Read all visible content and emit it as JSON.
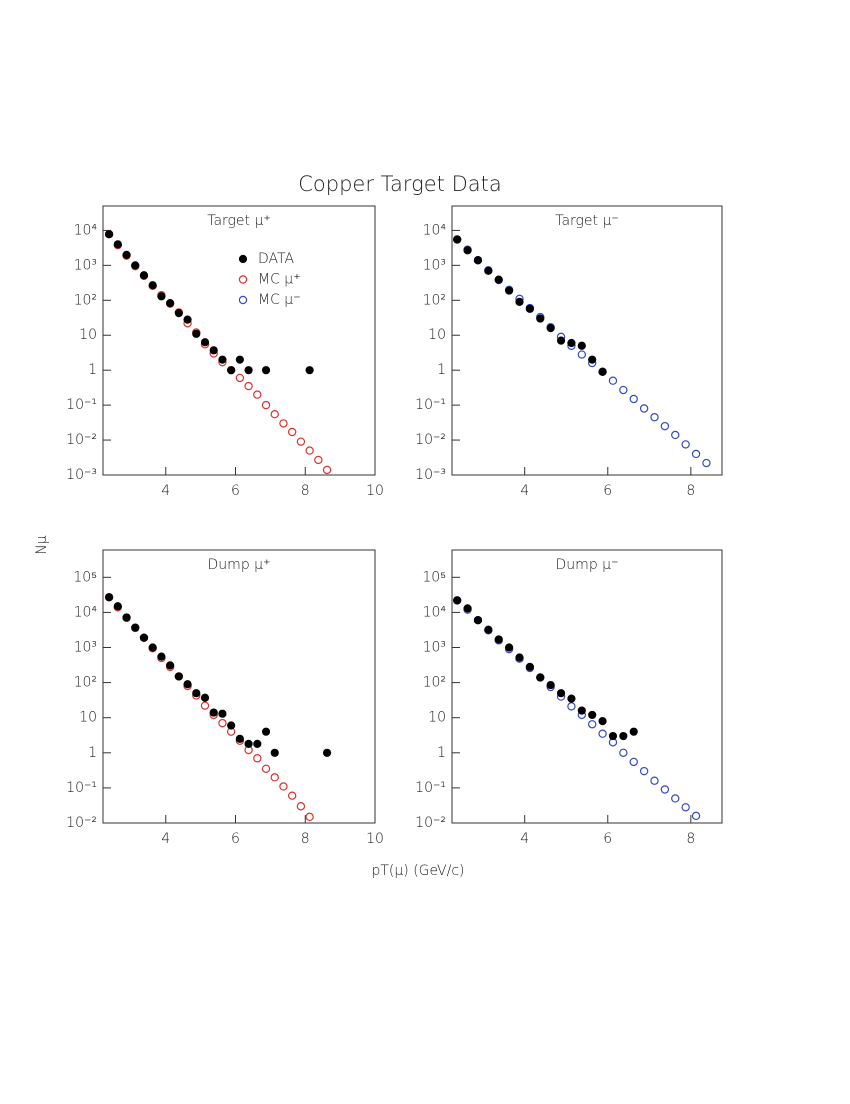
{
  "title": "Copper Target Data",
  "xlabel": "pT(μ) (GeV/c)",
  "ylabel": "Nμ",
  "legend": {
    "position": "upper right",
    "entries": [
      {
        "label": "DATA",
        "color": "#000000",
        "marker": "filled"
      },
      {
        "label": "MC μ⁺",
        "color": "#e0302a",
        "marker": "open"
      },
      {
        "label": "MC μ⁻",
        "color": "#3548c8",
        "marker": "open"
      }
    ]
  },
  "chart_data": [
    {
      "type": "scatter",
      "title": "Target μ⁺",
      "log_y": true,
      "legend": true,
      "xlim": [
        2.2,
        10
      ],
      "xticks": [
        4,
        6,
        8,
        10
      ],
      "ylim": [
        0.001,
        50000
      ],
      "yticks": [
        {
          "value": 10000,
          "label": "10⁴"
        },
        {
          "value": 1000,
          "label": "10³"
        },
        {
          "value": 100,
          "label": "10²"
        },
        10,
        1,
        {
          "value": 0.1,
          "label": "10⁻¹"
        },
        {
          "value": 0.01,
          "label": "10⁻²"
        },
        {
          "value": 0.001,
          "label": "10⁻³"
        }
      ],
      "series": [
        {
          "color": "#e0302a",
          "marker": "open",
          "x": [
            2.375,
            2.625,
            2.875,
            3.125,
            3.375,
            3.625,
            3.875,
            4.125,
            4.375,
            4.625,
            4.875,
            5.125,
            5.375,
            5.625,
            5.875,
            6.125,
            6.375,
            6.625,
            6.875,
            7.125,
            7.375,
            7.625,
            7.875,
            8.125,
            8.375,
            8.625
          ],
          "values": [
            7800,
            3800,
            1900,
            950,
            500,
            260,
            140,
            80,
            45,
            22,
            12,
            5.5,
            3,
            1.7,
            1.0,
            0.6,
            0.35,
            0.2,
            0.1,
            0.055,
            0.03,
            0.017,
            0.009,
            0.005,
            0.0027,
            0.0014
          ]
        },
        {
          "color": "#000000",
          "marker": "filled",
          "x": [
            2.375,
            2.625,
            2.875,
            3.125,
            3.375,
            3.625,
            3.875,
            4.125,
            4.375,
            4.625,
            4.875,
            5.125,
            5.375,
            5.625,
            5.875,
            6.125,
            6.375,
            6.875,
            8.125
          ],
          "values": [
            7800,
            4000,
            2000,
            1000,
            520,
            270,
            130,
            83,
            43,
            28,
            11,
            6.3,
            3.7,
            2,
            1,
            2,
            1,
            1,
            1
          ]
        }
      ]
    },
    {
      "type": "scatter",
      "title": "Target μ⁻",
      "log_y": true,
      "legend": false,
      "xlim": [
        2.25,
        8.75
      ],
      "xticks": [
        4,
        6,
        8
      ],
      "ylim": [
        0.001,
        50000
      ],
      "yticks": [
        {
          "value": 10000,
          "label": "10⁴"
        },
        {
          "value": 1000,
          "label": "10³"
        },
        {
          "value": 100,
          "label": "10²"
        },
        10,
        1,
        {
          "value": 0.1,
          "label": "10⁻¹"
        },
        {
          "value": 0.01,
          "label": "10⁻²"
        },
        {
          "value": 0.001,
          "label": "10⁻³"
        }
      ],
      "series": [
        {
          "color": "#3548c8",
          "marker": "open",
          "x": [
            2.375,
            2.625,
            2.875,
            3.125,
            3.375,
            3.625,
            3.875,
            4.125,
            4.375,
            4.625,
            4.875,
            5.125,
            5.375,
            5.625,
            5.875,
            6.125,
            6.375,
            6.625,
            6.875,
            7.125,
            7.375,
            7.625,
            7.875,
            8.125,
            8.375
          ],
          "values": [
            5500,
            2800,
            1400,
            720,
            380,
            200,
            110,
            60,
            33,
            17,
            9,
            5,
            2.8,
            1.6,
            0.9,
            0.5,
            0.27,
            0.15,
            0.08,
            0.045,
            0.025,
            0.014,
            0.0075,
            0.004,
            0.0022
          ]
        },
        {
          "color": "#000000",
          "marker": "filled",
          "x": [
            2.375,
            2.625,
            2.875,
            3.125,
            3.375,
            3.625,
            3.875,
            4.125,
            4.375,
            4.625,
            4.875,
            5.125,
            5.375,
            5.625,
            5.875
          ],
          "values": [
            5500,
            2700,
            1400,
            700,
            390,
            190,
            90,
            57,
            30,
            16,
            7,
            6,
            5,
            2,
            0.9
          ]
        }
      ]
    },
    {
      "type": "scatter",
      "title": "Dump μ⁺",
      "log_y": true,
      "legend": false,
      "xlim": [
        2.2,
        10
      ],
      "xticks": [
        4,
        6,
        8,
        10
      ],
      "ylim": [
        0.01,
        600000
      ],
      "yticks": [
        {
          "value": 100000,
          "label": "10⁵"
        },
        {
          "value": 10000,
          "label": "10⁴"
        },
        {
          "value": 1000,
          "label": "10³"
        },
        {
          "value": 100,
          "label": "10²"
        },
        10,
        1,
        {
          "value": 0.1,
          "label": "10⁻¹"
        },
        {
          "value": 0.01,
          "label": "10⁻²"
        }
      ],
      "series": [
        {
          "color": "#e0302a",
          "marker": "open",
          "x": [
            2.375,
            2.625,
            2.875,
            3.125,
            3.375,
            3.625,
            3.875,
            4.125,
            4.375,
            4.625,
            4.875,
            5.125,
            5.375,
            5.625,
            5.875,
            6.125,
            6.375,
            6.625,
            6.875,
            7.125,
            7.375,
            7.625,
            7.875,
            8.125
          ],
          "values": [
            27000,
            14000,
            7000,
            3600,
            1900,
            950,
            500,
            280,
            150,
            80,
            43,
            22,
            12,
            7,
            4,
            2.2,
            1.2,
            0.7,
            0.35,
            0.2,
            0.11,
            0.06,
            0.03,
            0.015
          ]
        },
        {
          "color": "#000000",
          "marker": "filled",
          "x": [
            2.375,
            2.625,
            2.875,
            3.125,
            3.375,
            3.625,
            3.875,
            4.125,
            4.375,
            4.625,
            4.875,
            5.125,
            5.375,
            5.625,
            5.875,
            6.125,
            6.375,
            6.625,
            6.875,
            7.125,
            8.625
          ],
          "values": [
            27000,
            15000,
            7200,
            3700,
            1900,
            1000,
            550,
            310,
            150,
            90,
            50,
            37,
            14,
            13,
            6,
            2.5,
            1.8,
            1.8,
            4,
            1,
            1
          ]
        }
      ]
    },
    {
      "type": "scatter",
      "title": "Dump μ⁻",
      "log_y": true,
      "legend": false,
      "xlim": [
        2.25,
        8.75
      ],
      "xticks": [
        4,
        6,
        8
      ],
      "ylim": [
        0.01,
        600000
      ],
      "yticks": [
        {
          "value": 100000,
          "label": "10⁵"
        },
        {
          "value": 10000,
          "label": "10⁴"
        },
        {
          "value": 1000,
          "label": "10³"
        },
        {
          "value": 100,
          "label": "10²"
        },
        10,
        1,
        {
          "value": 0.1,
          "label": "10⁻¹"
        },
        {
          "value": 0.01,
          "label": "10⁻²"
        }
      ],
      "series": [
        {
          "color": "#3548c8",
          "marker": "open",
          "x": [
            2.375,
            2.625,
            2.875,
            3.125,
            3.375,
            3.625,
            3.875,
            4.125,
            4.375,
            4.625,
            4.875,
            5.125,
            5.375,
            5.625,
            5.875,
            6.125,
            6.375,
            6.625,
            6.875,
            7.125,
            7.375,
            7.625,
            7.875,
            8.125
          ],
          "values": [
            22000,
            12000,
            6000,
            3100,
            1600,
            900,
            480,
            260,
            140,
            75,
            40,
            21,
            12,
            6.5,
            3.5,
            2,
            1,
            0.55,
            0.3,
            0.16,
            0.09,
            0.05,
            0.028,
            0.016
          ]
        },
        {
          "color": "#000000",
          "marker": "filled",
          "x": [
            2.375,
            2.625,
            2.875,
            3.125,
            3.375,
            3.625,
            3.875,
            4.125,
            4.375,
            4.625,
            4.875,
            5.125,
            5.375,
            5.625,
            5.875,
            6.125,
            6.375,
            6.625
          ],
          "values": [
            22000,
            13000,
            6000,
            3200,
            1700,
            1000,
            520,
            280,
            140,
            85,
            50,
            35,
            16,
            12,
            8,
            3,
            3,
            4
          ]
        }
      ]
    }
  ]
}
